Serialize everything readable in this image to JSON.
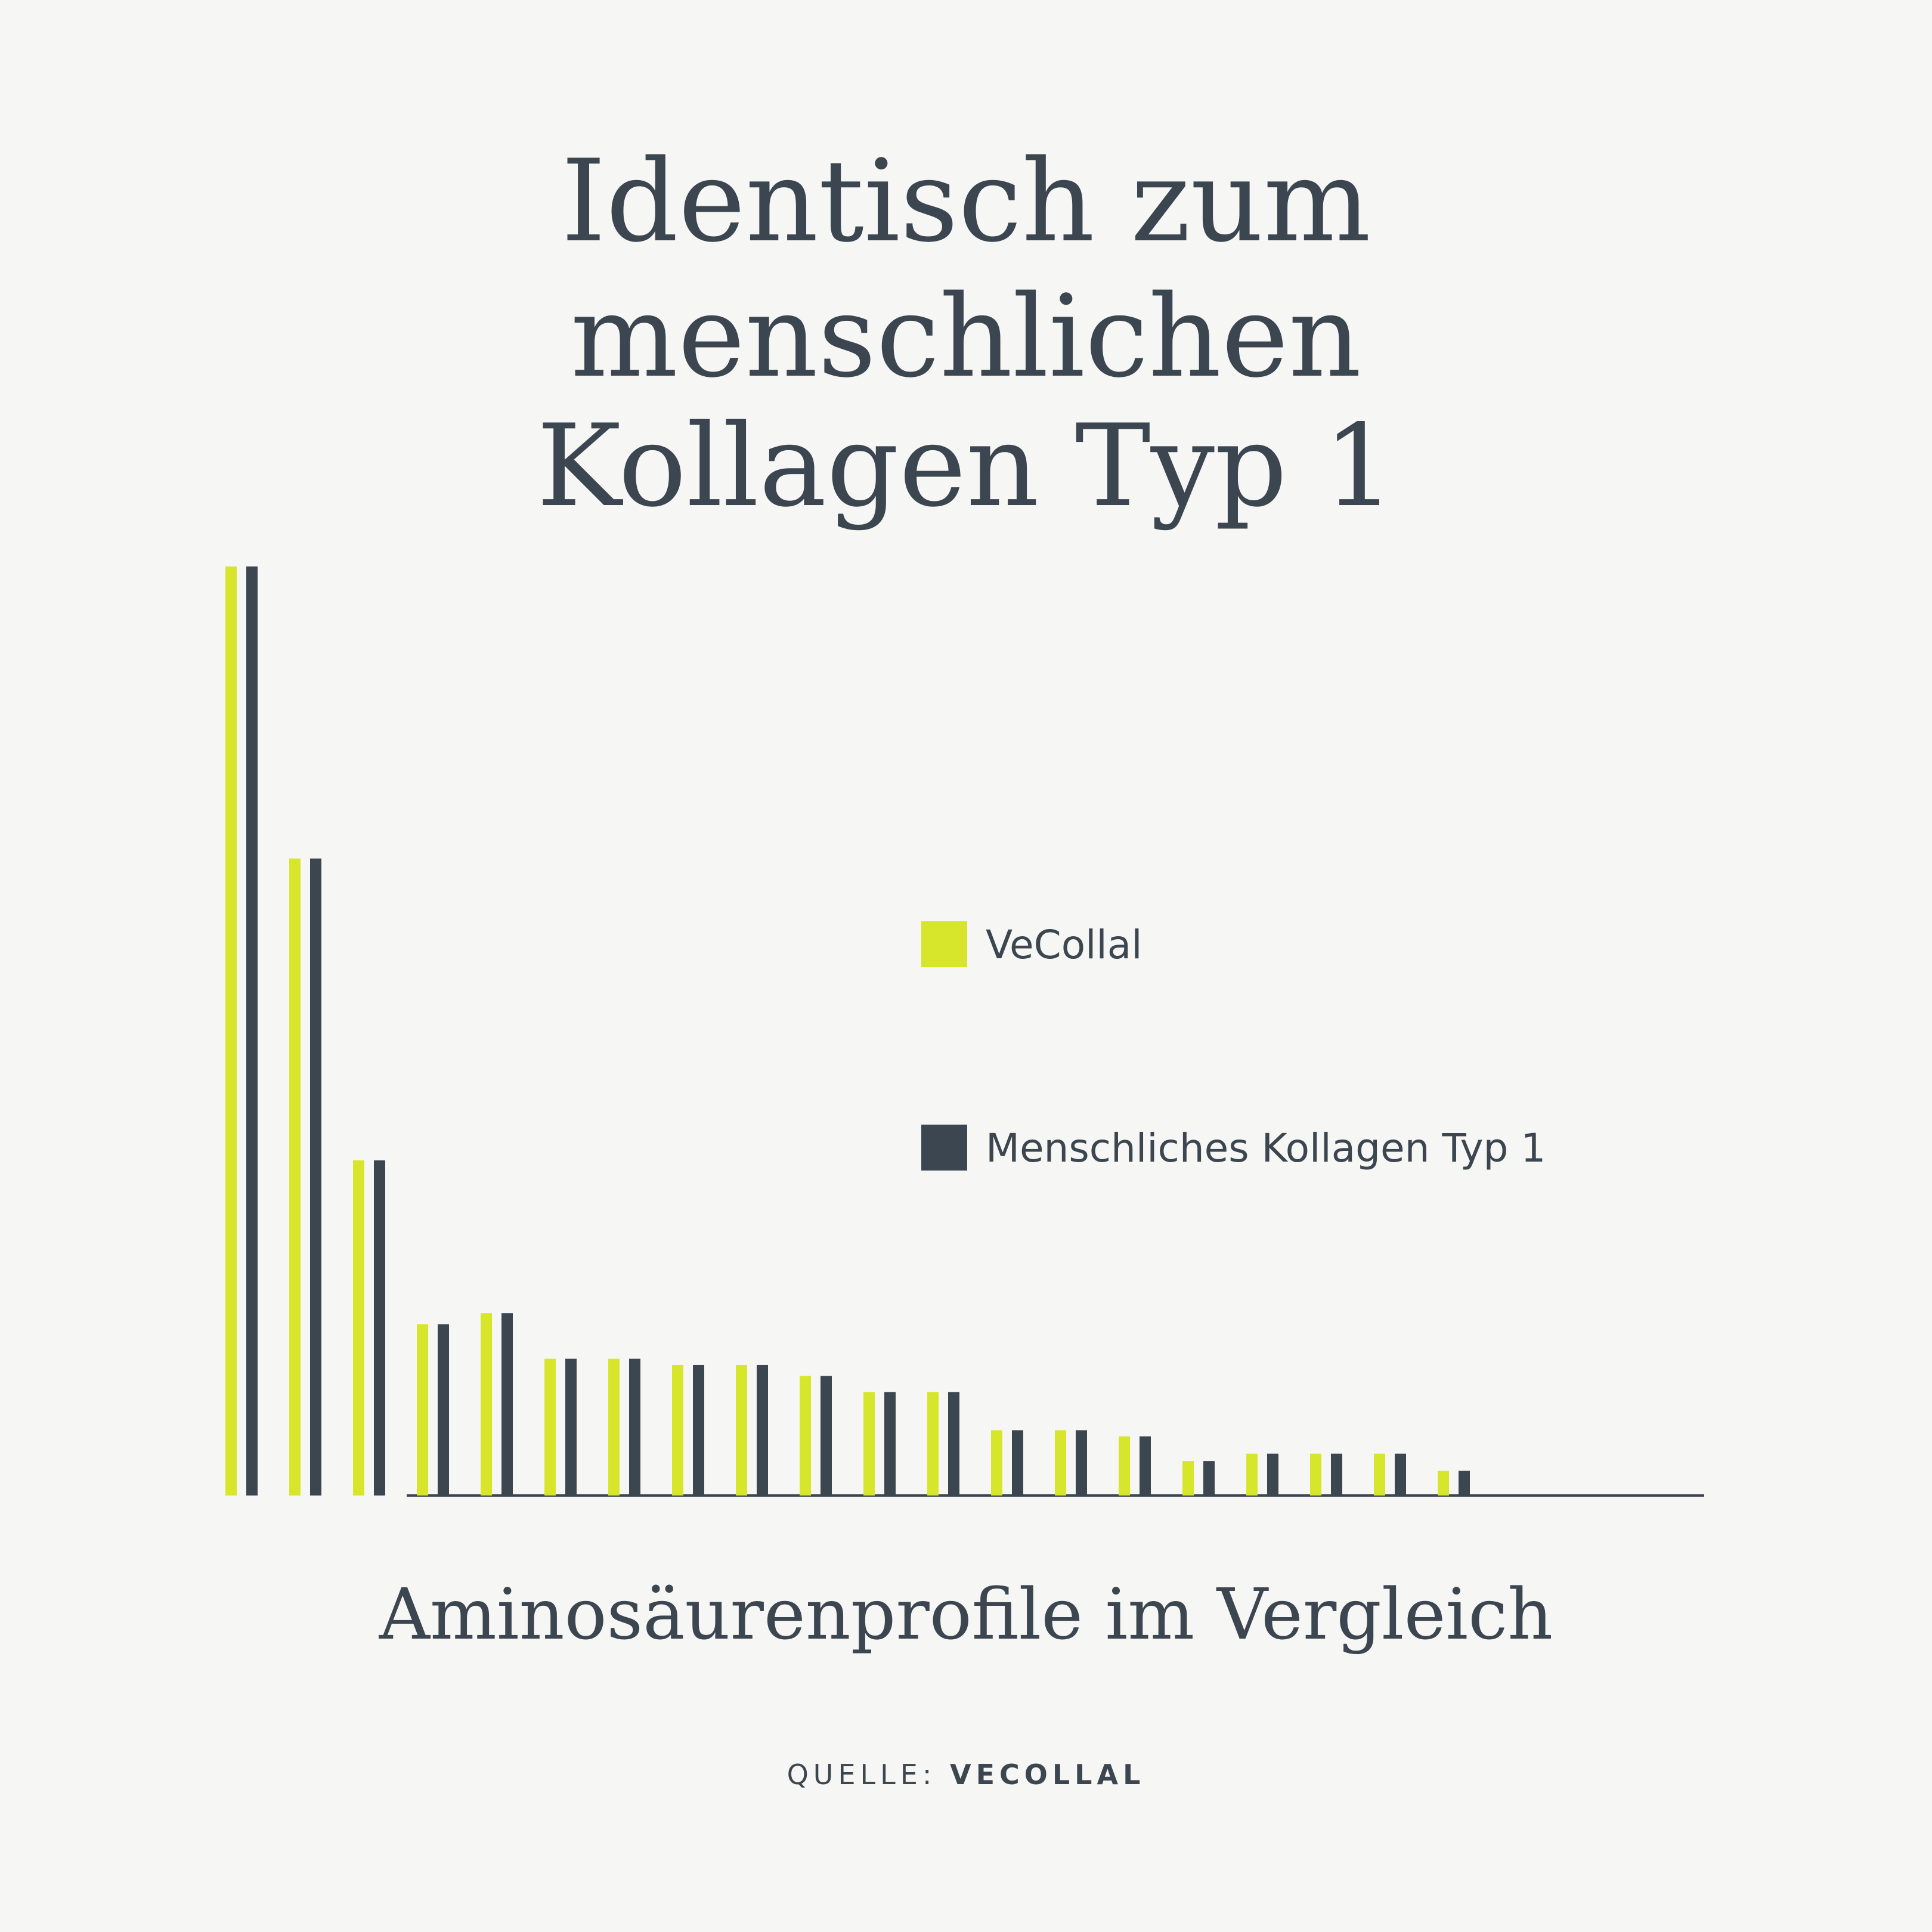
{
  "chart_data": {
    "type": "bar",
    "title": [
      "Identisch zum",
      "menschlichen",
      "Kollagen Typ 1"
    ],
    "subtitle": "Aminosäurenprofile im Vergleich",
    "source_label": "QUELLE:",
    "source_name": "VECOLLAL",
    "series": [
      {
        "name": "VeCollal",
        "color": "#d8e62b",
        "values": [
          754,
          517,
          272,
          139,
          148,
          111,
          111,
          106,
          106,
          97,
          84,
          84,
          53,
          53,
          48,
          28,
          34,
          34,
          34,
          20
        ]
      },
      {
        "name": "Menschliches Kollagen Typ 1",
        "color": "#3c4650",
        "values": [
          754,
          517,
          272,
          139,
          148,
          111,
          111,
          106,
          106,
          97,
          84,
          84,
          53,
          53,
          48,
          28,
          34,
          34,
          34,
          20
        ]
      }
    ]
  }
}
